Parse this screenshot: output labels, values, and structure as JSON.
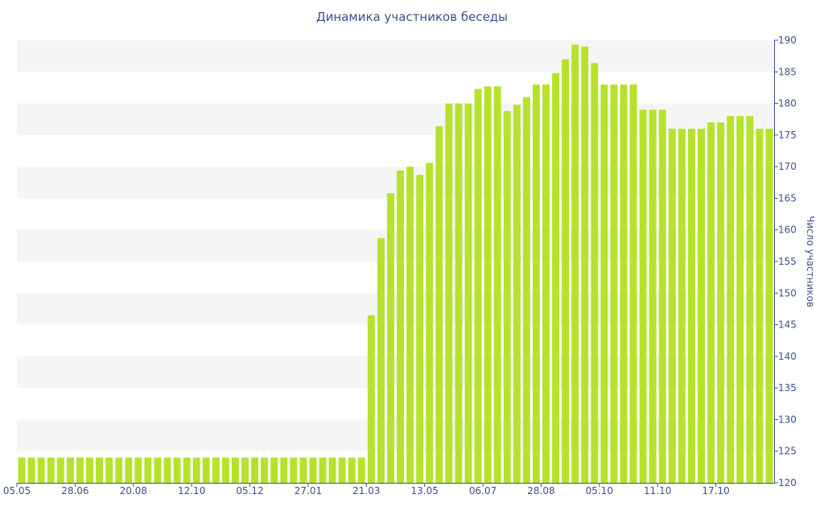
{
  "chart_data": {
    "type": "bar",
    "title": "Динамика участников беседы",
    "xlabel": "",
    "ylabel": "Число участников",
    "ylim": [
      120,
      190
    ],
    "y_ticks": [
      120,
      125,
      130,
      135,
      140,
      145,
      150,
      155,
      160,
      165,
      170,
      175,
      180,
      185,
      190
    ],
    "y_axis_side": "right",
    "grid": "alternating horizontal bands",
    "x_tick_labels": [
      "05.05",
      "28.06",
      "20.08",
      "12.10",
      "05.12",
      "27.01",
      "21.03",
      "13.05",
      "06.07",
      "28.08",
      "05.10",
      "11.10",
      "17.10"
    ],
    "x_tick_positions": [
      0,
      6,
      12,
      18,
      24,
      30,
      36,
      42,
      48,
      54,
      60,
      66,
      72
    ],
    "values": [
      124,
      124,
      124,
      124,
      124,
      124,
      124,
      124,
      124,
      124,
      124,
      124,
      124,
      124,
      124,
      124,
      124,
      124,
      124,
      124,
      124,
      124,
      124,
      124,
      124,
      124,
      124,
      124,
      124,
      124,
      124,
      124,
      124,
      124,
      124,
      124,
      146.5,
      158.7,
      165.8,
      169.4,
      170,
      168.7,
      170.6,
      176.4,
      180,
      180,
      180,
      182.3,
      182.7,
      182.7,
      178.8,
      179.8,
      181,
      183,
      183,
      184.8,
      187,
      189.3,
      189,
      186.4,
      183,
      183,
      183,
      183,
      179,
      179,
      179,
      176,
      176,
      176,
      176,
      177,
      177,
      178,
      178,
      178,
      176,
      176
    ],
    "color": "#b5e32c"
  }
}
